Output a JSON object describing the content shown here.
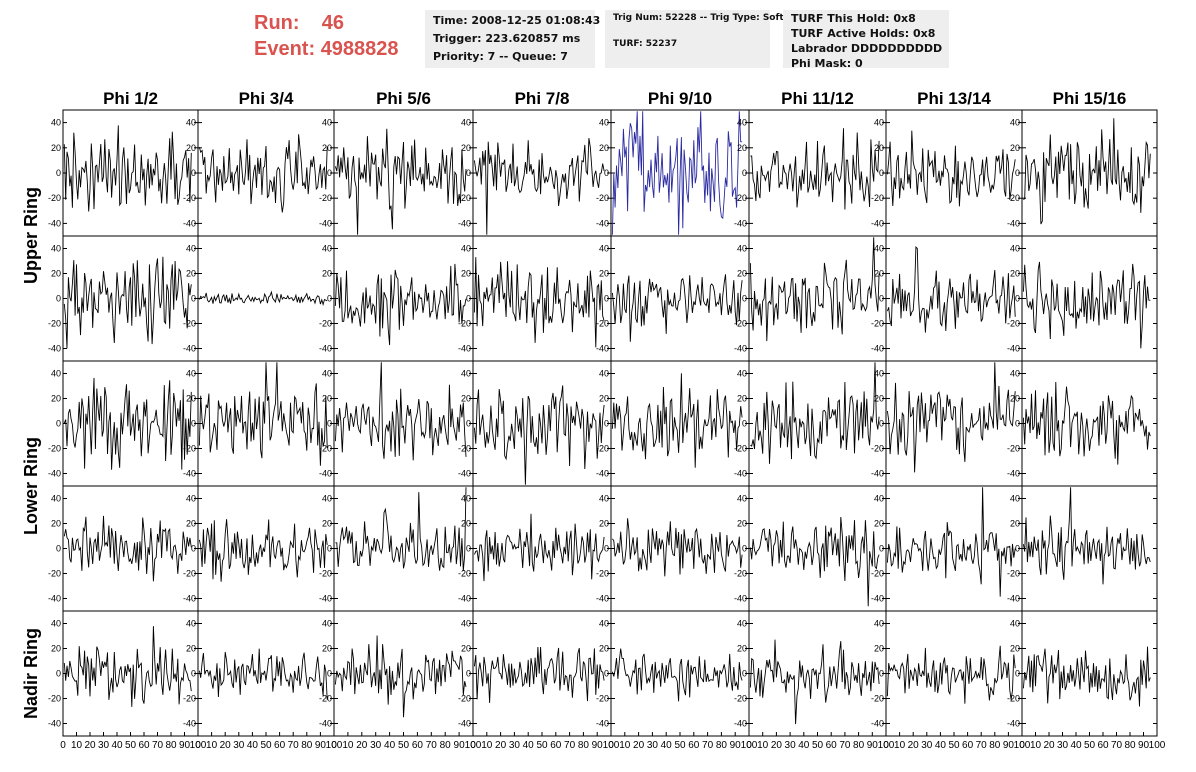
{
  "header": {
    "run_label": "Run:",
    "run_value": "46",
    "event_label": "Event:",
    "event_value": "4988828"
  },
  "info_time": {
    "time": "Time: 2008-12-25 01:08:43",
    "trigger": "Trigger: 223.620857 ms",
    "priority": "Priority: 7 -- Queue: 7"
  },
  "info_trig": {
    "trig": "Trig Num: 52228 -- Trig Type: Soft",
    "turf": "TURF: 52237"
  },
  "info_turf": {
    "hold": "TURF This Hold: 0x8",
    "active": "TURF Active Holds: 0x8",
    "labrador": "Labrador DDDDDDDDDD",
    "mask": "Phi Mask: 0"
  },
  "colors": {
    "waveform": "#000000",
    "highlight_waveform": "#2a2aa0",
    "header_text": "#d9534f",
    "info_background": "#eeeeee"
  },
  "chart_data": {
    "type": "line",
    "columns": [
      "Phi 1/2",
      "Phi 3/4",
      "Phi 5/6",
      "Phi 7/8",
      "Phi 9/10",
      "Phi 11/12",
      "Phi 13/14",
      "Phi 15/16"
    ],
    "rows": [
      "Upper Ring",
      "Lower Ring",
      "Nadir Ring"
    ],
    "row_spans": [
      2,
      2,
      1
    ],
    "xlim": [
      0,
      100
    ],
    "ylim": [
      -50,
      50
    ],
    "x_ticks": [
      0,
      10,
      20,
      30,
      40,
      50,
      60,
      70,
      80,
      90,
      100
    ],
    "y_ticks": [
      -40,
      -20,
      0,
      20,
      40
    ],
    "samples": 95,
    "highlight_panel": {
      "row": 0,
      "col": 4
    },
    "panel_amplitude": [
      [
        14,
        14,
        14,
        12,
        22,
        13,
        13,
        16
      ],
      [
        15,
        2,
        15,
        14,
        12,
        14,
        12,
        15
      ],
      [
        15,
        13,
        14,
        14,
        14,
        14,
        14,
        14
      ],
      [
        11,
        10,
        10,
        9,
        10,
        11,
        10,
        11
      ],
      [
        11,
        9,
        10,
        9,
        9,
        11,
        10,
        11
      ]
    ]
  }
}
